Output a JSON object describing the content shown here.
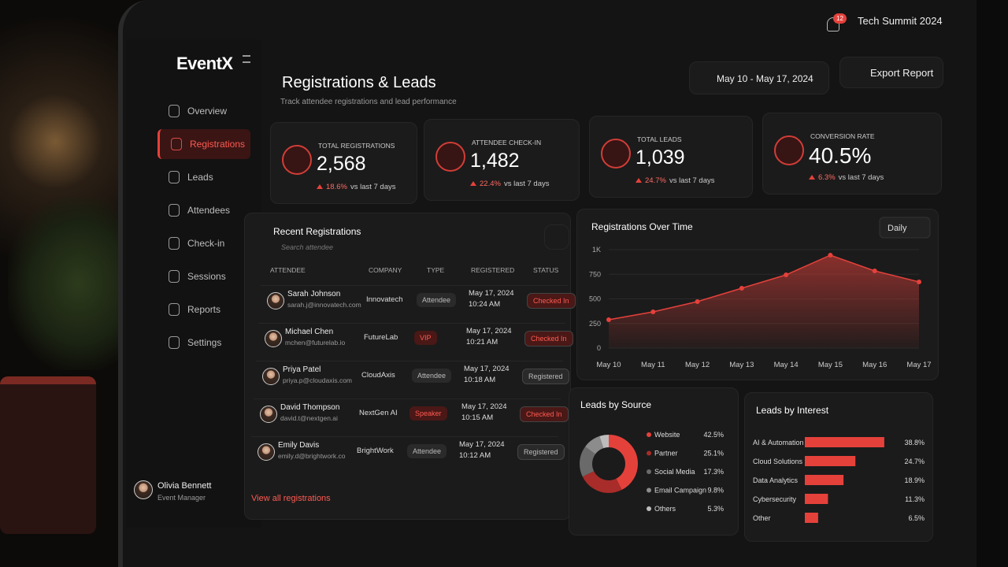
{
  "app": {
    "logo": "EventX",
    "event": "Tech Summit 2024",
    "notifications": "12"
  },
  "nav": [
    {
      "label": "Overview"
    },
    {
      "label": "Registrations",
      "active": true
    },
    {
      "label": "Leads"
    },
    {
      "label": "Attendees"
    },
    {
      "label": "Check-in"
    },
    {
      "label": "Sessions"
    },
    {
      "label": "Reports"
    },
    {
      "label": "Settings"
    }
  ],
  "user": {
    "name": "Olivia Bennett",
    "role": "Event Manager"
  },
  "header": {
    "title": "Registrations & Leads",
    "subtitle": "Track attendee registrations and lead performance",
    "date_range": "May 10 - May 17, 2024",
    "export": "Export Report"
  },
  "kpis": [
    {
      "label": "TOTAL REGISTRATIONS",
      "value": "2,568",
      "change": "18.6%",
      "note": "vs last 7 days"
    },
    {
      "label": "ATTENDEE CHECK-IN",
      "value": "1,482",
      "change": "22.4%",
      "note": "vs last 7 days"
    },
    {
      "label": "TOTAL LEADS",
      "value": "1,039",
      "change": "24.7%",
      "note": "vs last 7 days"
    },
    {
      "label": "CONVERSION RATE",
      "value": "40.5%",
      "change": "6.3%",
      "note": "vs last 7 days"
    }
  ],
  "table": {
    "title": "Recent Registrations",
    "search": "Search attendee",
    "columns": [
      "ATTENDEE",
      "COMPANY",
      "TYPE",
      "REGISTERED",
      "STATUS"
    ],
    "rows": [
      {
        "name": "Sarah Johnson",
        "email": "sarah.j@innovatech.com",
        "company": "Innovatech",
        "type": "Attendee",
        "date": "May 17, 2024",
        "time": "10:24 AM",
        "status": "Checked In"
      },
      {
        "name": "Michael Chen",
        "email": "mchen@futurelab.io",
        "company": "FutureLab",
        "type": "VIP",
        "date": "May 17, 2024",
        "time": "10:21 AM",
        "status": "Checked In"
      },
      {
        "name": "Priya Patel",
        "email": "priya.p@cloudaxis.com",
        "company": "CloudAxis",
        "type": "Attendee",
        "date": "May 17, 2024",
        "time": "10:18 AM",
        "status": "Registered"
      },
      {
        "name": "David Thompson",
        "email": "david.t@nextgen.ai",
        "company": "NextGen AI",
        "type": "Speaker",
        "date": "May 17, 2024",
        "time": "10:15 AM",
        "status": "Checked In"
      },
      {
        "name": "Emily Davis",
        "email": "emily.d@brightwork.co",
        "company": "BrightWork",
        "type": "Attendee",
        "date": "May 17, 2024",
        "time": "10:12 AM",
        "status": "Registered"
      }
    ],
    "link": "View all registrations"
  },
  "chart_data": [
    {
      "type": "area",
      "title": "Registrations Over Time",
      "period": "Daily",
      "categories": [
        "May 10",
        "May 11",
        "May 12",
        "May 13",
        "May 14",
        "May 15",
        "May 16",
        "May 17"
      ],
      "values": [
        288,
        368,
        472,
        608,
        744,
        944,
        784,
        672
      ],
      "color": "#e5413b",
      "ylim": [
        0,
        1000
      ],
      "yticks": [
        0,
        250,
        500,
        750,
        {
          "value": 1000,
          "label": "1K"
        }
      ],
      "grid": true
    },
    {
      "type": "donut",
      "title": "Leads by Source",
      "categories": [
        "Website",
        "Partner",
        "Social Media",
        "Email Campaign",
        "Others"
      ],
      "values": [
        42.5,
        25.1,
        17.3,
        9.8,
        5.3
      ],
      "value_labels": [
        "42.5%",
        "25.1%",
        "17.3%",
        "9.8%",
        "5.3%"
      ],
      "colors": [
        "#e5413b",
        "#a82c29",
        "#6a6a6a",
        "#8c8c8c",
        "#bdbdbd"
      ]
    },
    {
      "type": "hbar",
      "title": "Leads by Interest",
      "categories": [
        "AI & Automation",
        "Cloud Solutions",
        "Data Analytics",
        "Cybersecurity",
        "Other"
      ],
      "values": [
        38.8,
        24.7,
        18.9,
        11.3,
        6.5
      ],
      "value_labels": [
        "38.8%",
        "24.7%",
        "18.9%",
        "11.3%",
        "6.5%"
      ],
      "color": "#e5413b"
    }
  ]
}
